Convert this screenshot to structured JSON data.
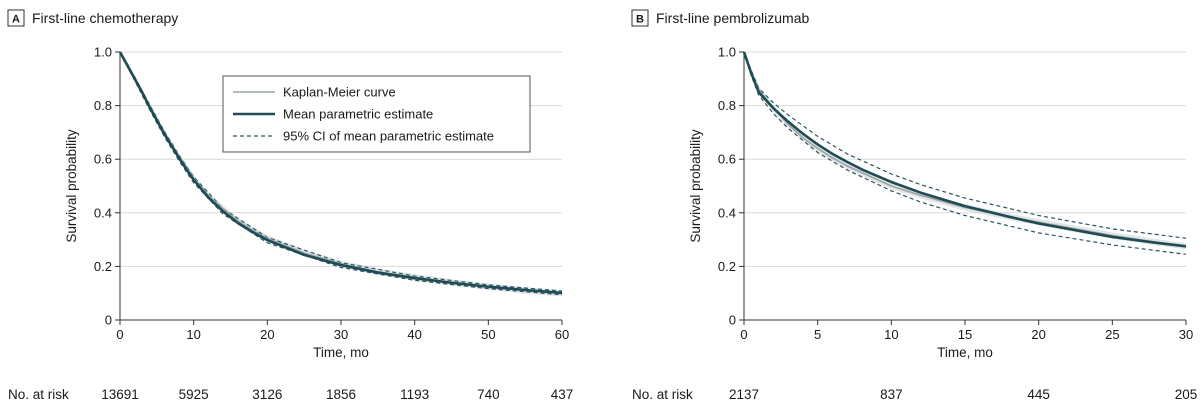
{
  "chart_data": [
    {
      "type": "line",
      "panel_letter": "A",
      "title": "First-line chemotherapy",
      "xlabel": "Time, mo",
      "ylabel": "Survival probability",
      "xlim": [
        0,
        60
      ],
      "ylim": [
        0,
        1.0
      ],
      "x_ticks": [
        0,
        10,
        20,
        30,
        40,
        50,
        60
      ],
      "y_ticks": [
        0,
        0.2,
        0.4,
        0.6,
        0.8,
        1.0
      ],
      "y_tick_labels": [
        "0",
        "0.2",
        "0.4",
        "0.6",
        "0.8",
        "1.0"
      ],
      "grid": "horizontal",
      "legend_position": "top-right",
      "legend": [
        {
          "label": "Kaplan-Meier curve",
          "style": "km"
        },
        {
          "label": "Mean parametric estimate",
          "style": "mean"
        },
        {
          "label": "95% CI of mean parametric estimate",
          "style": "ci"
        }
      ],
      "series": [
        {
          "name": "Kaplan-Meier curve",
          "style": "km",
          "x": [
            0,
            1,
            2,
            3,
            4,
            5,
            6,
            7,
            8,
            9,
            10,
            12,
            14,
            16,
            18,
            20,
            25,
            30,
            35,
            40,
            45,
            50,
            55,
            60
          ],
          "y": [
            1.0,
            0.95,
            0.9,
            0.85,
            0.8,
            0.75,
            0.7,
            0.655,
            0.61,
            0.57,
            0.53,
            0.465,
            0.415,
            0.37,
            0.335,
            0.305,
            0.25,
            0.21,
            0.18,
            0.16,
            0.14,
            0.125,
            0.11,
            0.1
          ]
        },
        {
          "name": "Mean parametric estimate",
          "style": "mean",
          "x": [
            0,
            1,
            2,
            3,
            4,
            5,
            6,
            7,
            8,
            9,
            10,
            12,
            14,
            16,
            18,
            20,
            25,
            30,
            35,
            40,
            45,
            50,
            55,
            60
          ],
          "y": [
            1.0,
            0.95,
            0.9,
            0.85,
            0.795,
            0.745,
            0.695,
            0.65,
            0.605,
            0.563,
            0.523,
            0.457,
            0.405,
            0.362,
            0.328,
            0.298,
            0.243,
            0.205,
            0.177,
            0.156,
            0.139,
            0.124,
            0.112,
            0.101
          ]
        },
        {
          "name": "95% CI lower",
          "style": "ci",
          "x": [
            0,
            2,
            4,
            6,
            8,
            10,
            14,
            20,
            30,
            40,
            50,
            60
          ],
          "y": [
            1.0,
            0.893,
            0.786,
            0.685,
            0.595,
            0.512,
            0.395,
            0.288,
            0.196,
            0.148,
            0.117,
            0.094
          ]
        },
        {
          "name": "95% CI upper",
          "style": "ci",
          "x": [
            0,
            2,
            4,
            6,
            8,
            10,
            14,
            20,
            30,
            40,
            50,
            60
          ],
          "y": [
            1.0,
            0.907,
            0.804,
            0.705,
            0.615,
            0.534,
            0.415,
            0.308,
            0.214,
            0.164,
            0.131,
            0.108
          ]
        }
      ],
      "at_risk": {
        "label": "No. at risk",
        "x": [
          0,
          10,
          20,
          30,
          40,
          50,
          60
        ],
        "counts": [
          "13691",
          "5925",
          "3126",
          "1856",
          "1193",
          "740",
          "437"
        ]
      }
    },
    {
      "type": "line",
      "panel_letter": "B",
      "title": "First-line pembrolizumab",
      "xlabel": "Time, mo",
      "ylabel": "Survival probability",
      "xlim": [
        0,
        30
      ],
      "ylim": [
        0,
        1.0
      ],
      "x_ticks": [
        0,
        5,
        10,
        15,
        20,
        25,
        30
      ],
      "y_ticks": [
        0,
        0.2,
        0.4,
        0.6,
        0.8,
        1.0
      ],
      "y_tick_labels": [
        "0",
        "0.2",
        "0.4",
        "0.6",
        "0.8",
        "1.0"
      ],
      "grid": "horizontal",
      "series": [
        {
          "name": "Kaplan-Meier curve",
          "style": "km",
          "x": [
            0,
            0.5,
            1,
            2,
            3,
            4,
            5,
            6,
            7,
            8,
            10,
            12,
            15,
            18,
            20,
            22,
            25,
            28,
            30
          ],
          "y": [
            1.0,
            0.92,
            0.86,
            0.79,
            0.73,
            0.68,
            0.64,
            0.605,
            0.575,
            0.55,
            0.5,
            0.465,
            0.42,
            0.385,
            0.365,
            0.345,
            0.315,
            0.29,
            0.275
          ]
        },
        {
          "name": "Mean parametric estimate",
          "style": "mean",
          "x": [
            0,
            0.5,
            1,
            2,
            3,
            4,
            5,
            6,
            7,
            8,
            10,
            12,
            15,
            18,
            20,
            22,
            25,
            28,
            30
          ],
          "y": [
            1.0,
            0.92,
            0.85,
            0.79,
            0.74,
            0.695,
            0.655,
            0.62,
            0.59,
            0.562,
            0.515,
            0.475,
            0.425,
            0.385,
            0.36,
            0.34,
            0.31,
            0.288,
            0.275
          ]
        },
        {
          "name": "95% CI lower",
          "style": "ci",
          "x": [
            0,
            0.5,
            1,
            2,
            3,
            5,
            7,
            10,
            12,
            15,
            20,
            25,
            30
          ],
          "y": [
            1.0,
            0.91,
            0.84,
            0.77,
            0.715,
            0.625,
            0.56,
            0.482,
            0.44,
            0.39,
            0.325,
            0.28,
            0.245
          ]
        },
        {
          "name": "95% CI upper",
          "style": "ci",
          "x": [
            0,
            0.5,
            1,
            2,
            3,
            5,
            7,
            10,
            12,
            15,
            20,
            25,
            30
          ],
          "y": [
            1.0,
            0.93,
            0.865,
            0.81,
            0.765,
            0.685,
            0.62,
            0.545,
            0.505,
            0.455,
            0.39,
            0.34,
            0.305
          ]
        }
      ],
      "at_risk": {
        "label": "No. at risk",
        "x": [
          0,
          10,
          20,
          30
        ],
        "counts": [
          "2137",
          "837",
          "445",
          "205"
        ]
      }
    }
  ],
  "colors": {
    "mean": "#1f4b55",
    "km": "#9aa3a6",
    "ci": "#2a5463",
    "km_band": "#cfd4d6"
  }
}
